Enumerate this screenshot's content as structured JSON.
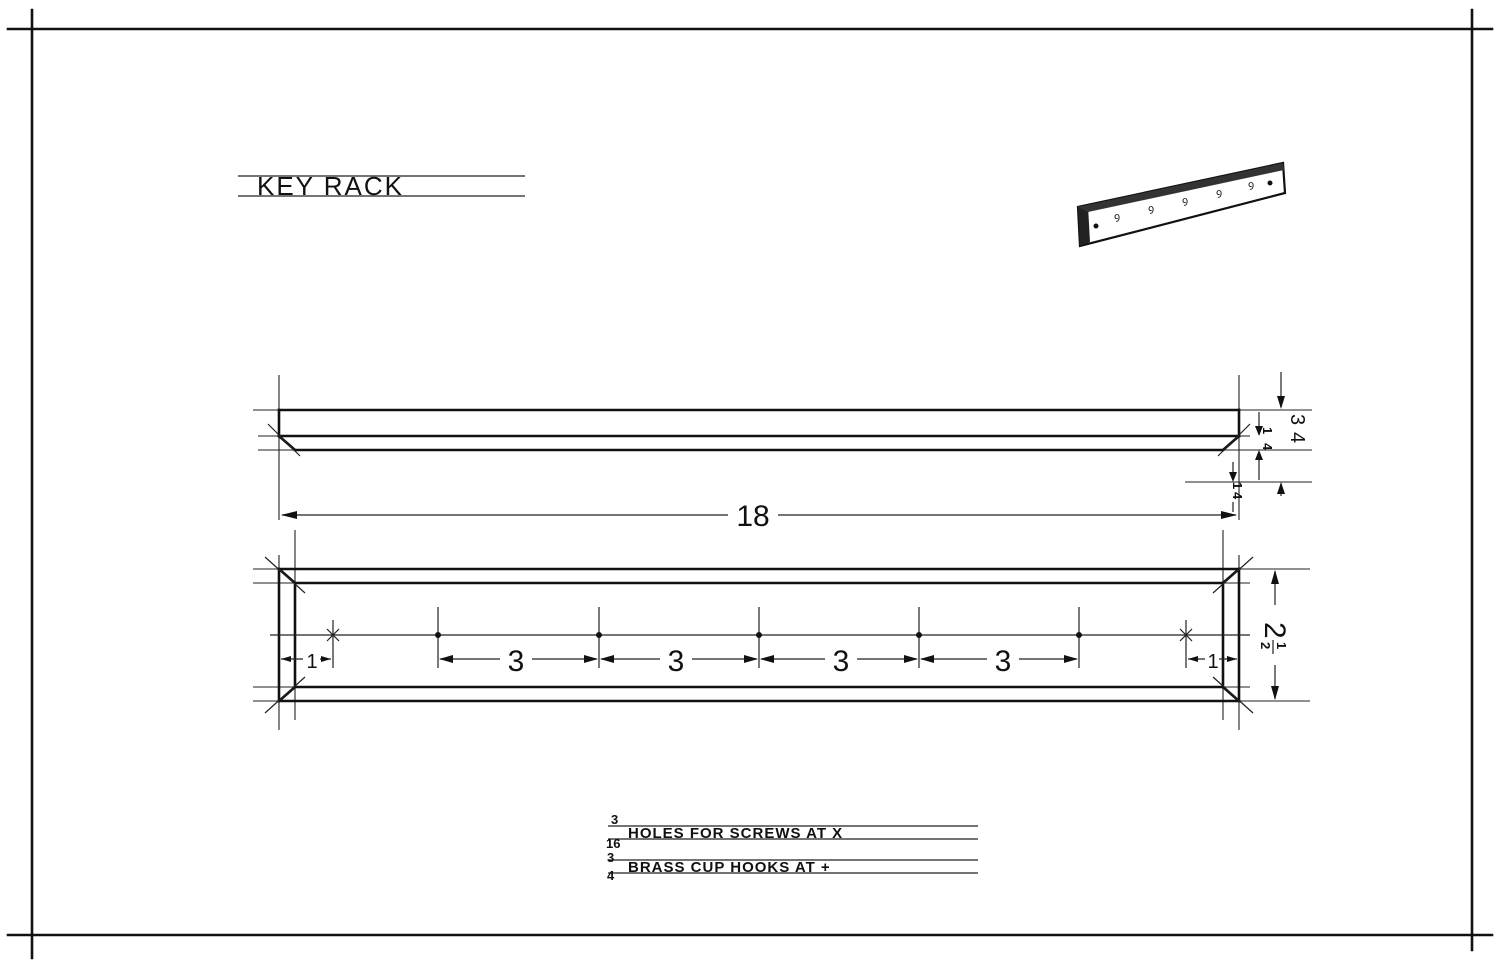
{
  "title": "KEY RACK",
  "dimensions": {
    "length": "18",
    "hook_spacings": [
      "3",
      "3",
      "3",
      "3"
    ],
    "screw_offset_left": "1",
    "screw_offset_right": "1",
    "width": "2",
    "width_fraction_num": "1",
    "width_fraction_den": "2",
    "thickness": "3",
    "thickness_den": "4",
    "chamfer_top": "1",
    "chamfer_top_den": "4",
    "chamfer_side": "1",
    "chamfer_side_den": "4"
  },
  "notes": [
    {
      "size_num": "3",
      "size_den": "16",
      "text": "HOLES FOR SCREWS AT X"
    },
    {
      "size_num": "3",
      "size_den": "4",
      "text": "BRASS CUP HOOKS AT +"
    }
  ]
}
